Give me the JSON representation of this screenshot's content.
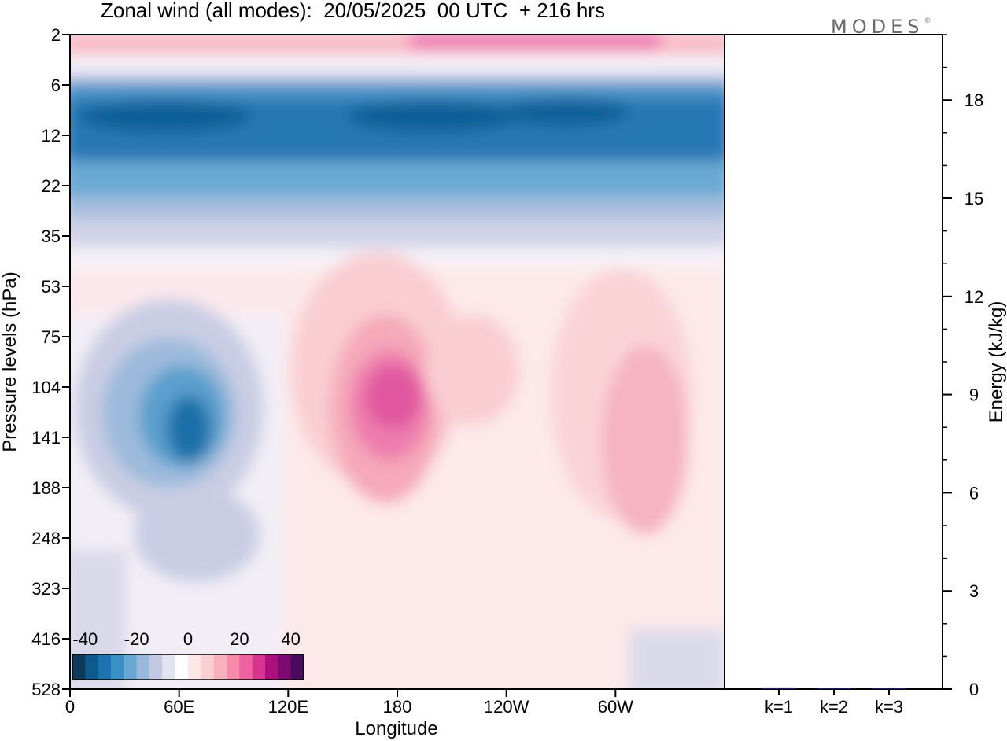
{
  "header": {
    "title": "Zonal wind (all modes):  20/05/2025  00 UTC  + 216 hrs",
    "brand": "MODES",
    "brand_mark": "©"
  },
  "chart_data": [
    {
      "type": "heatmap",
      "title": "Zonal wind (all modes):  20/05/2025  00 UTC  + 216 hrs",
      "xlabel": "Longitude",
      "ylabel": "Pressure levels (hPa)",
      "x_ticks": [
        "0",
        "60E",
        "120E",
        "180",
        "120W",
        "60W"
      ],
      "x_tick_degrees_east": [
        0,
        60,
        120,
        180,
        240,
        300
      ],
      "xlim": [
        0,
        360
      ],
      "y_ticks": [
        "2",
        "6",
        "12",
        "22",
        "35",
        "53",
        "75",
        "104",
        "141",
        "188",
        "248",
        "323",
        "416",
        "528"
      ],
      "y_scale": "log",
      "ylim": [
        528,
        2
      ],
      "colorbar": {
        "tick_labels": [
          "-40",
          "-20",
          "0",
          "20",
          "40"
        ],
        "range": [
          -45,
          45
        ],
        "colors": [
          "#0e3a5c",
          "#0f5a8c",
          "#1b74b0",
          "#3a8fc4",
          "#68a8d2",
          "#9ab9db",
          "#c3c9e2",
          "#e4e4f0",
          "#ffffff",
          "#fde8e8",
          "#fbd0d3",
          "#f8b1be",
          "#f58ba8",
          "#ef619f",
          "#d9338e",
          "#ad0f7d",
          "#7d0a71",
          "#4a0a5e"
        ],
        "placement": "bottom-left inside plot"
      },
      "features": [
        {
          "name": "easterly band",
          "sign": "negative",
          "core_value": -40,
          "pressure_range_hPa": [
            6,
            22
          ],
          "lon_range": [
            0,
            360
          ]
        },
        {
          "name": "westerly top band",
          "sign": "positive",
          "core_value": 20,
          "pressure_range_hPa": [
            2,
            4
          ],
          "lon_range": [
            0,
            360
          ]
        },
        {
          "name": "easterly jet near 60E",
          "sign": "negative",
          "core_value": -35,
          "pressure_hPa": 141,
          "lon": 65
        },
        {
          "name": "westerly jet near 180",
          "sign": "positive",
          "core_value": 25,
          "pressure_hPa": 104,
          "lon": 185
        },
        {
          "name": "westerly maximum near 45W",
          "sign": "positive",
          "core_value": 15,
          "pressure_hPa": 188,
          "lon": 320
        }
      ]
    },
    {
      "type": "bar",
      "categories": [
        "k=1",
        "k=2",
        "k=3"
      ],
      "values": [
        0.05,
        0.03,
        0.03
      ],
      "ylabel": "Energy (kJ/kg)",
      "y_ticks": [
        "0",
        "3",
        "6",
        "9",
        "12",
        "15",
        "18"
      ],
      "ylim": [
        0,
        20
      ],
      "bar_color": "#1a1a6e"
    }
  ]
}
